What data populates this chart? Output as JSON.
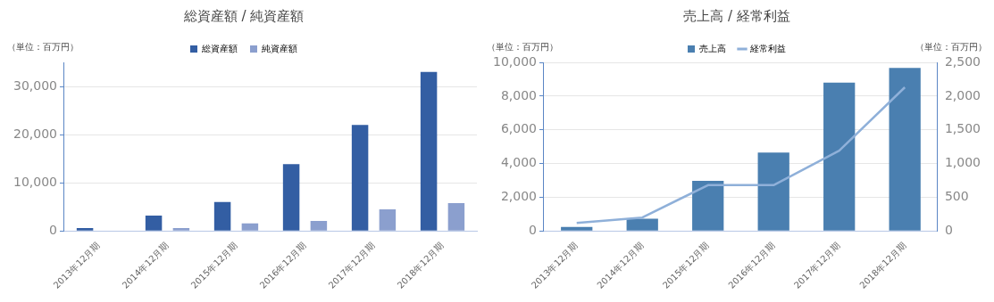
{
  "chart_data": [
    {
      "type": "bar",
      "title": "総資産額 / 純資産額",
      "ylabel": "（単位：百万円）",
      "categories": [
        "2013年12月期",
        "2014年12月期",
        "2015年12月期",
        "2016年12月期",
        "2017年12月期",
        "2018年12月期"
      ],
      "series": [
        {
          "name": "総資産額",
          "color": "#335ea3",
          "values": [
            600,
            3200,
            6000,
            13900,
            22000,
            33000
          ]
        },
        {
          "name": "純資産額",
          "color": "#8b9fce",
          "values": [
            null,
            600,
            1600,
            2100,
            4500,
            5800
          ]
        }
      ],
      "ylim": [
        0,
        35000
      ],
      "yticks": [
        0,
        {
          "value": 10000,
          "label": "10,000"
        },
        {
          "value": 20000,
          "label": "20,000"
        },
        {
          "value": 30000,
          "label": "30,000"
        }
      ],
      "grid": "y",
      "legend": "top"
    },
    {
      "type": "bar",
      "title": "売上高 / 経常利益",
      "ylabel": "（単位：百万円）",
      "y2label": "（単位：百万円）",
      "categories": [
        "2013年12月期",
        "2014年12月期",
        "2015年12月期",
        "2016年12月期",
        "2017年12月期",
        "2018年12月期"
      ],
      "series": [
        {
          "name": "売上高",
          "color": "#4a7fb0",
          "values": [
            240,
            730,
            2980,
            4650,
            8800,
            9670
          ]
        },
        {
          "name": "経常利益",
          "type": "line",
          "axis": "y2",
          "color": "#8fb0d9",
          "values": [
            120,
            200,
            680,
            680,
            1190,
            2130
          ]
        }
      ],
      "ylim": [
        0,
        10000
      ],
      "yticks": [
        0,
        {
          "value": 2000,
          "label": "2,000"
        },
        {
          "value": 4000,
          "label": "4,000"
        },
        {
          "value": 6000,
          "label": "6,000"
        },
        {
          "value": 8000,
          "label": "8,000"
        },
        {
          "value": 10000,
          "label": "10,000"
        }
      ],
      "y2lim": [
        0,
        2500
      ],
      "y2ticks": [
        0,
        500,
        {
          "value": 1000,
          "label": "1,000"
        },
        {
          "value": 1500,
          "label": "1,500"
        },
        {
          "value": 2000,
          "label": "2,000"
        },
        {
          "value": 2500,
          "label": "2,500"
        }
      ],
      "grid": "y",
      "legend": "top",
      "marker": "none"
    }
  ]
}
